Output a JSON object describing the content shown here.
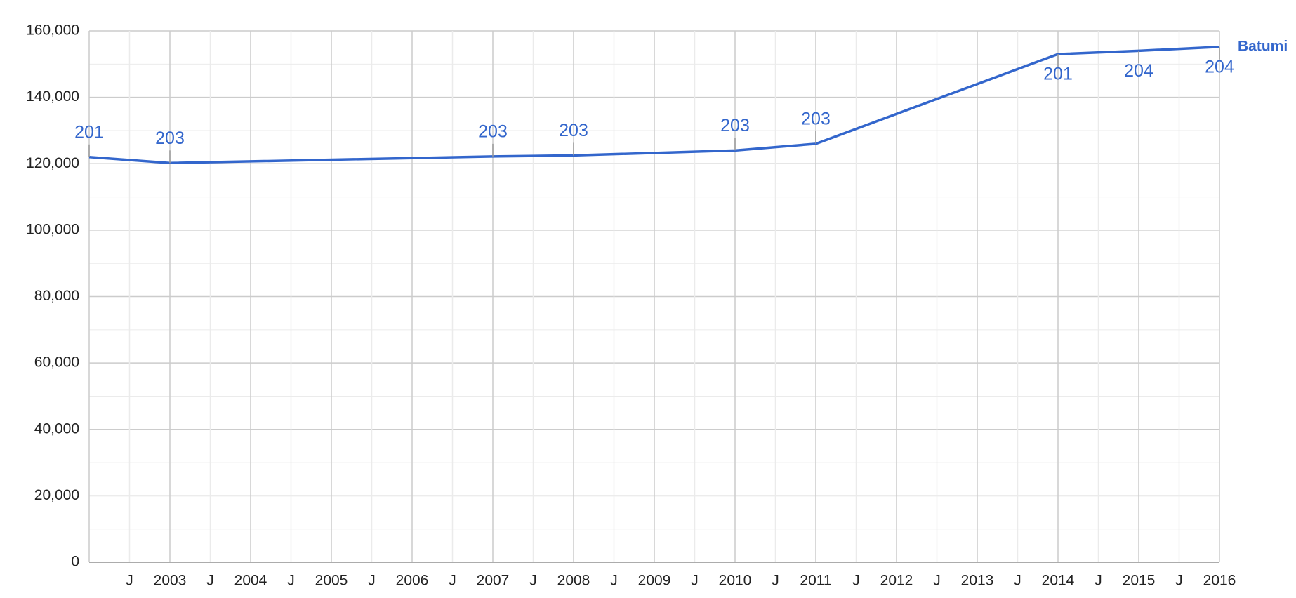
{
  "chart_data": {
    "type": "line",
    "x": [
      2002,
      2003,
      2007,
      2008,
      2010,
      2011,
      2014,
      2015,
      2016
    ],
    "series": [
      {
        "name": "Batumi",
        "color": "#3366cc",
        "values": [
          122000,
          120200,
          122200,
          122500,
          124000,
          126000,
          153000,
          154000,
          155200
        ],
        "annotations": [
          "201",
          "203",
          "203",
          "203",
          "203",
          "203",
          "201",
          "204",
          "204"
        ]
      }
    ],
    "xlim": [
      2002,
      2016
    ],
    "xticks": [
      {
        "value": 2002.5,
        "label": "J"
      },
      2003,
      {
        "value": 2003.5,
        "label": "J"
      },
      2004,
      {
        "value": 2004.5,
        "label": "J"
      },
      2005,
      {
        "value": 2005.5,
        "label": "J"
      },
      2006,
      {
        "value": 2006.5,
        "label": "J"
      },
      2007,
      {
        "value": 2007.5,
        "label": "J"
      },
      2008,
      {
        "value": 2008.5,
        "label": "J"
      },
      2009,
      {
        "value": 2009.5,
        "label": "J"
      },
      2010,
      {
        "value": 2010.5,
        "label": "J"
      },
      2011,
      {
        "value": 2011.5,
        "label": "J"
      },
      2012,
      {
        "value": 2012.5,
        "label": "J"
      },
      2013,
      {
        "value": 2013.5,
        "label": "J"
      },
      2014,
      {
        "value": 2014.5,
        "label": "J"
      },
      2015,
      {
        "value": 2015.5,
        "label": "J"
      },
      2016
    ],
    "ylim": [
      0,
      160000
    ],
    "yticks": [
      0,
      {
        "value": 20000,
        "label": "20,000"
      },
      {
        "value": 40000,
        "label": "40,000"
      },
      {
        "value": 60000,
        "label": "60,000"
      },
      {
        "value": 80000,
        "label": "80,000"
      },
      {
        "value": 100000,
        "label": "100,000"
      },
      {
        "value": 120000,
        "label": "120,000"
      },
      {
        "value": 140000,
        "label": "140,000"
      },
      {
        "value": 160000,
        "label": "160,000"
      }
    ],
    "grid": true
  }
}
